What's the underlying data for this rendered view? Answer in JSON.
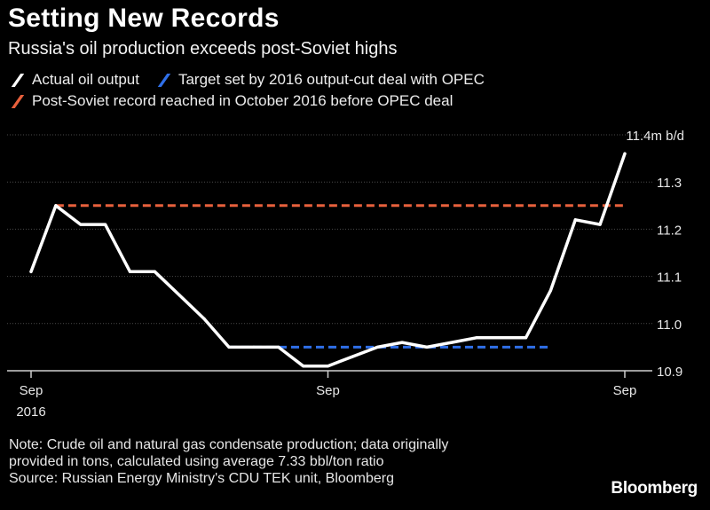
{
  "title": "Setting New Records",
  "subtitle": "Russia's oil production exceeds post-Soviet highs",
  "legend": [
    {
      "label": "Actual oil output",
      "color": "#ffffff"
    },
    {
      "label": "Target set by 2016 output-cut deal with OPEC",
      "color": "#2f6fe8"
    },
    {
      "label": "Post-Soviet record reached in October 2016 before OPEC deal",
      "color": "#e8603c"
    }
  ],
  "note_lines": [
    "Note: Crude oil and natural gas condensate production; data originally",
    "provided in tons, calculated using average 7.33 bbl/ton ratio",
    "Source: Russian Energy Ministry's CDU TEK unit, Bloomberg"
  ],
  "brand": "Bloomberg",
  "chart_data": {
    "type": "line",
    "x_ticks": [
      {
        "label": "Sep",
        "sub": "2016",
        "month": 0
      },
      {
        "label": "Sep",
        "sub": "",
        "month": 12
      },
      {
        "label": "Sep",
        "sub": "",
        "month": 24
      }
    ],
    "y_ticks": [
      {
        "value": 10.9,
        "label": "10.9"
      },
      {
        "value": 11.0,
        "label": "11.0"
      },
      {
        "value": 11.1,
        "label": "11.1"
      },
      {
        "value": 11.2,
        "label": "11.2"
      },
      {
        "value": 11.3,
        "label": "11.3"
      },
      {
        "value": 11.4,
        "label": "11.4m b/d"
      }
    ],
    "ylim": [
      10.9,
      11.4
    ],
    "xlim_months": [
      0,
      24
    ],
    "grid": true,
    "series": [
      {
        "name": "Actual oil output",
        "color": "#ffffff",
        "x_months": [
          0,
          1,
          2,
          3,
          4,
          5,
          6,
          7,
          8,
          9,
          10,
          11,
          12,
          13,
          14,
          15,
          16,
          17,
          18,
          19,
          20,
          21,
          22,
          23,
          24
        ],
        "values": [
          11.11,
          11.25,
          11.21,
          11.21,
          11.11,
          11.11,
          11.06,
          11.01,
          10.95,
          10.95,
          10.95,
          10.91,
          10.91,
          10.93,
          10.95,
          10.96,
          10.95,
          10.96,
          10.97,
          10.97,
          10.97,
          11.07,
          11.22,
          11.21,
          11.36
        ]
      }
    ],
    "reference_lines": [
      {
        "name": "Post-Soviet record reached in October 2016 before OPEC deal",
        "value": 11.25,
        "from_month": 1,
        "to_month": 24,
        "color": "#e8603c"
      },
      {
        "name": "Target set by 2016 output-cut deal with OPEC",
        "value": 10.95,
        "from_month": 8,
        "to_month": 21,
        "color": "#2f6fe8"
      }
    ]
  }
}
